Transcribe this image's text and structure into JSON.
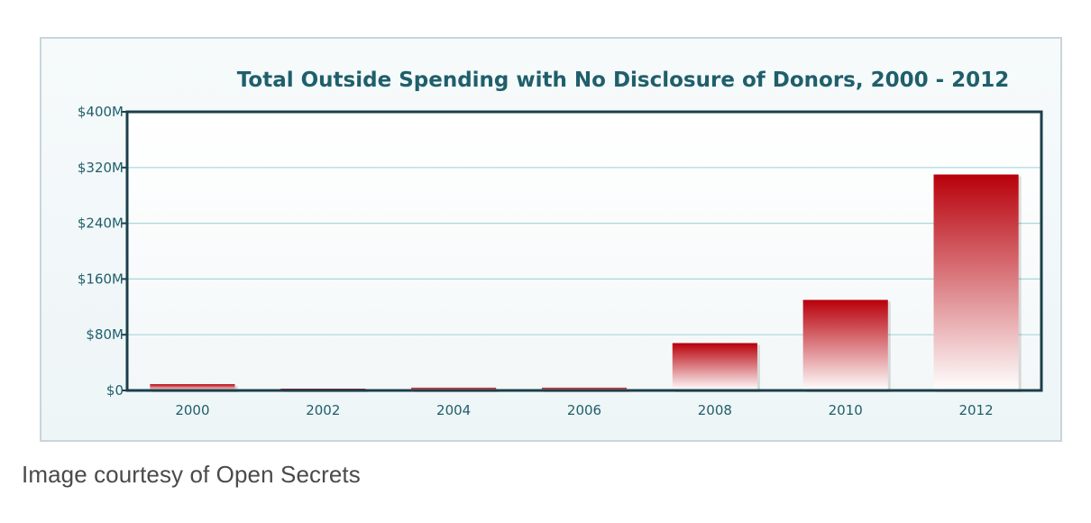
{
  "caption": "Image courtesy of Open Secrets",
  "colors": {
    "bar_top": "#b8000a",
    "bar_bottom": "#ffffff",
    "axis": "#1b3f4a",
    "gridline": "#a9d6dd",
    "text": "#1f5f6b",
    "plot_background": "#ffffff",
    "frame_background": "#f2f7f9"
  },
  "chart_data": {
    "type": "bar",
    "title": "Total Outside Spending with No Disclosure of Donors, 2000 - 2012",
    "xlabel": "",
    "ylabel": "",
    "categories": [
      "2000",
      "2002",
      "2004",
      "2006",
      "2008",
      "2010",
      "2012"
    ],
    "values": [
      9,
      1,
      4,
      4,
      68,
      130,
      310
    ],
    "value_unit": "$M",
    "ylim": [
      0,
      400
    ],
    "yticks": [
      0,
      80,
      160,
      240,
      320,
      400
    ],
    "ytick_labels": [
      "$0",
      "$80M",
      "$160M",
      "$240M",
      "$320M",
      "$400M"
    ],
    "grid": true,
    "legend": "none"
  }
}
